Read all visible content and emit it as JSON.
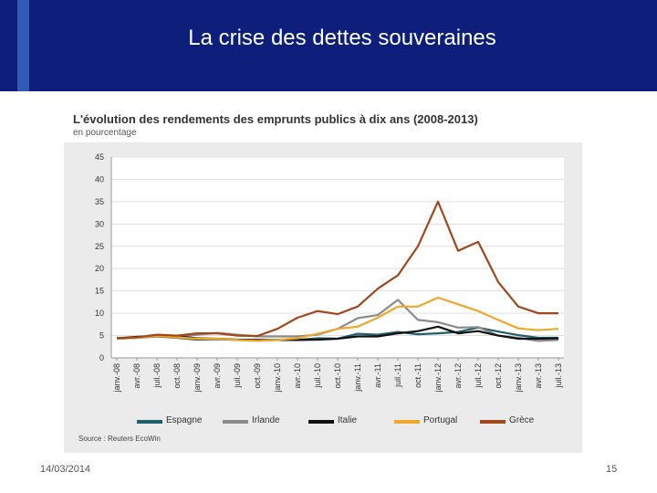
{
  "slide": {
    "title": "La crise des dettes souveraines",
    "date": "14/03/2014",
    "page_number": "15"
  },
  "colors": {
    "header_bg": "#0d1f7a",
    "header_accent": "#2f5bb5"
  },
  "chart_data": {
    "type": "line",
    "title": "L'évolution des rendements des emprunts publics à dix ans (2008-2013)",
    "subtitle": "en pourcentage",
    "source": "Source : Reuters EcoWin",
    "xlabel": "",
    "ylabel": "",
    "ylim": [
      0,
      45
    ],
    "yticks": [
      "0",
      "5",
      "10",
      "15",
      "20",
      "25",
      "30",
      "35",
      "40",
      "45"
    ],
    "grid": true,
    "legend_position": "bottom",
    "x": [
      "janv.-08",
      "avr.-08",
      "juil.-08",
      "oct.-08",
      "janv.-09",
      "avr.-09",
      "juil.-09",
      "oct.-09",
      "janv.-10",
      "avr.-10",
      "juil.-10",
      "oct.-10",
      "janv.-11",
      "avr.-11",
      "juil.-11",
      "oct.-11",
      "janv.-12",
      "avr.-12",
      "juil.-12",
      "oct.-12",
      "janv.-13",
      "avr.-13",
      "juil.-13"
    ],
    "series": [
      {
        "name": "Espagne",
        "color": "#1f5f6b",
        "values": [
          4.3,
          4.5,
          4.8,
          4.5,
          4.1,
          4.2,
          4.0,
          3.9,
          4.0,
          4.0,
          4.4,
          4.3,
          5.4,
          5.2,
          5.8,
          5.3,
          5.5,
          5.8,
          6.8,
          5.9,
          5.1,
          4.5,
          4.5
        ]
      },
      {
        "name": "Irlande",
        "color": "#8a8a8a",
        "values": [
          4.4,
          4.6,
          4.9,
          4.7,
          5.2,
          5.6,
          5.2,
          4.8,
          4.8,
          4.8,
          5.2,
          6.5,
          8.9,
          9.6,
          13.0,
          8.5,
          8.0,
          6.8,
          6.9,
          5.0,
          4.5,
          3.8,
          4.0
        ]
      },
      {
        "name": "Italie",
        "color": "#111111",
        "values": [
          4.4,
          4.7,
          4.9,
          4.8,
          4.4,
          4.3,
          4.1,
          4.0,
          4.0,
          4.0,
          4.1,
          4.3,
          4.8,
          4.8,
          5.5,
          6.0,
          7.0,
          5.5,
          6.0,
          5.0,
          4.3,
          4.3,
          4.4
        ]
      },
      {
        "name": "Portugal",
        "color": "#f0a82a",
        "values": [
          4.3,
          4.5,
          4.9,
          4.6,
          4.3,
          4.3,
          4.0,
          3.8,
          4.0,
          4.4,
          5.4,
          6.5,
          7.0,
          9.0,
          11.5,
          11.5,
          13.5,
          12.0,
          10.5,
          8.5,
          6.6,
          6.2,
          6.5
        ]
      },
      {
        "name": "Grèce",
        "color": "#a0471c",
        "values": [
          4.4,
          4.6,
          5.2,
          5.0,
          5.5,
          5.5,
          5.0,
          4.9,
          6.5,
          9.0,
          10.5,
          9.8,
          11.5,
          15.5,
          18.5,
          25.0,
          35.0,
          24.0,
          26.0,
          17.0,
          11.5,
          10.0,
          10.0
        ]
      }
    ]
  }
}
